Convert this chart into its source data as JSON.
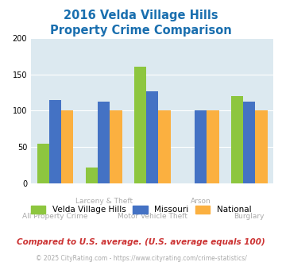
{
  "title_line1": "2016 Velda Village Hills",
  "title_line2": "Property Crime Comparison",
  "title_color": "#1a6faf",
  "velda": [
    55,
    22,
    160,
    0,
    120
  ],
  "missouri": [
    115,
    113,
    127,
    100,
    112
  ],
  "national": [
    100,
    100,
    100,
    100,
    100
  ],
  "velda_color": "#8dc63f",
  "missouri_color": "#4472c4",
  "national_color": "#fbb040",
  "ylim": [
    0,
    200
  ],
  "yticks": [
    0,
    50,
    100,
    150,
    200
  ],
  "plot_bg": "#dce9f0",
  "footer_text": "Compared to U.S. average. (U.S. average equals 100)",
  "copyright_text": "© 2025 CityRating.com - https://www.cityrating.com/crime-statistics/",
  "legend_labels": [
    "Velda Village Hills",
    "Missouri",
    "National"
  ],
  "bar_width": 0.25,
  "x_labels_top": [
    "",
    "Larceny & Theft",
    "",
    "Arson",
    ""
  ],
  "x_labels_bottom": [
    "All Property Crime",
    "",
    "Motor Vehicle Theft",
    "",
    "Burglary"
  ],
  "footer_color": "#cc3333",
  "copyright_color": "#aaaaaa",
  "title_fontsize": 10.5,
  "legend_fontsize": 7.5,
  "footer_fontsize": 7.5,
  "copyright_fontsize": 5.5,
  "xlabel_fontsize": 6.5,
  "xlabel_color": "#aaaaaa",
  "ytick_fontsize": 7,
  "grid_color": "white"
}
